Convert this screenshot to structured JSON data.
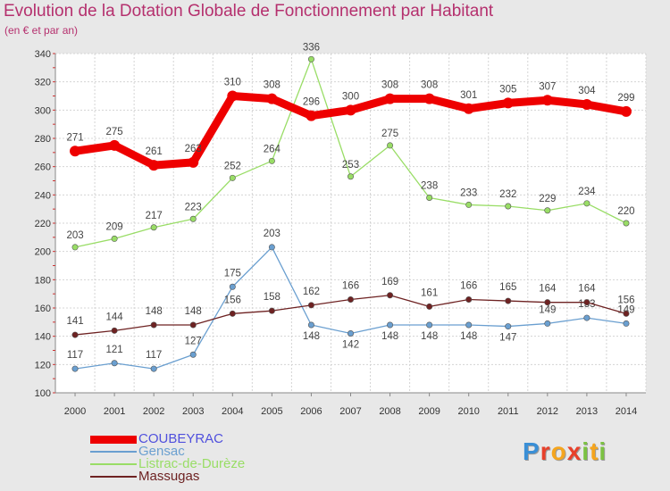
{
  "title": "Evolution de la Dotation Globale de Fonctionnement par Habitant",
  "subtitle": "(en € et par an)",
  "brand": [
    "P",
    "r",
    "o",
    "x",
    "i",
    "t",
    "i"
  ],
  "brand_colors": [
    "#3a8fd6",
    "#e8402a",
    "#f5a51e",
    "#e8402a",
    "#7cc242",
    "#f5a51e",
    "#7cc242"
  ],
  "chart_data": {
    "type": "line",
    "title": "Evolution de la Dotation Globale de Fonctionnement par Habitant",
    "subtitle": "(en € et par an)",
    "xlabel": "",
    "ylabel": "",
    "categories": [
      "2000",
      "2001",
      "2002",
      "2003",
      "2004",
      "2005",
      "2006",
      "2007",
      "2008",
      "2009",
      "2010",
      "2011",
      "2012",
      "2013",
      "2014"
    ],
    "ylim": [
      100,
      340
    ],
    "yticks": [
      100,
      120,
      140,
      160,
      180,
      200,
      220,
      240,
      260,
      280,
      300,
      320,
      340
    ],
    "grid": true,
    "legend_position": "bottom-left",
    "series": [
      {
        "name": "COUBEYRAC",
        "color": "#ee0000",
        "label_color": "#5050dd",
        "weight": "heavy",
        "values": [
          271,
          275,
          261,
          263,
          310,
          308,
          296,
          300,
          308,
          308,
          301,
          305,
          307,
          304,
          299
        ]
      },
      {
        "name": "Gensac",
        "color": "#6a9fd0",
        "label_color": "#6a9fd0",
        "weight": "thin",
        "values": [
          117,
          121,
          117,
          127,
          175,
          203,
          148,
          142,
          148,
          148,
          148,
          147,
          149,
          153,
          149
        ]
      },
      {
        "name": "Listrac-de-Durèze",
        "color": "#99dd66",
        "label_color": "#99dd66",
        "weight": "thin",
        "values": [
          203,
          209,
          217,
          223,
          252,
          264,
          336,
          253,
          275,
          238,
          233,
          232,
          229,
          234,
          220
        ]
      },
      {
        "name": "Massugas",
        "color": "#6e2222",
        "label_color": "#6e2222",
        "weight": "thin",
        "values": [
          141,
          144,
          148,
          148,
          156,
          158,
          162,
          166,
          169,
          161,
          166,
          165,
          164,
          164,
          156
        ]
      }
    ]
  }
}
